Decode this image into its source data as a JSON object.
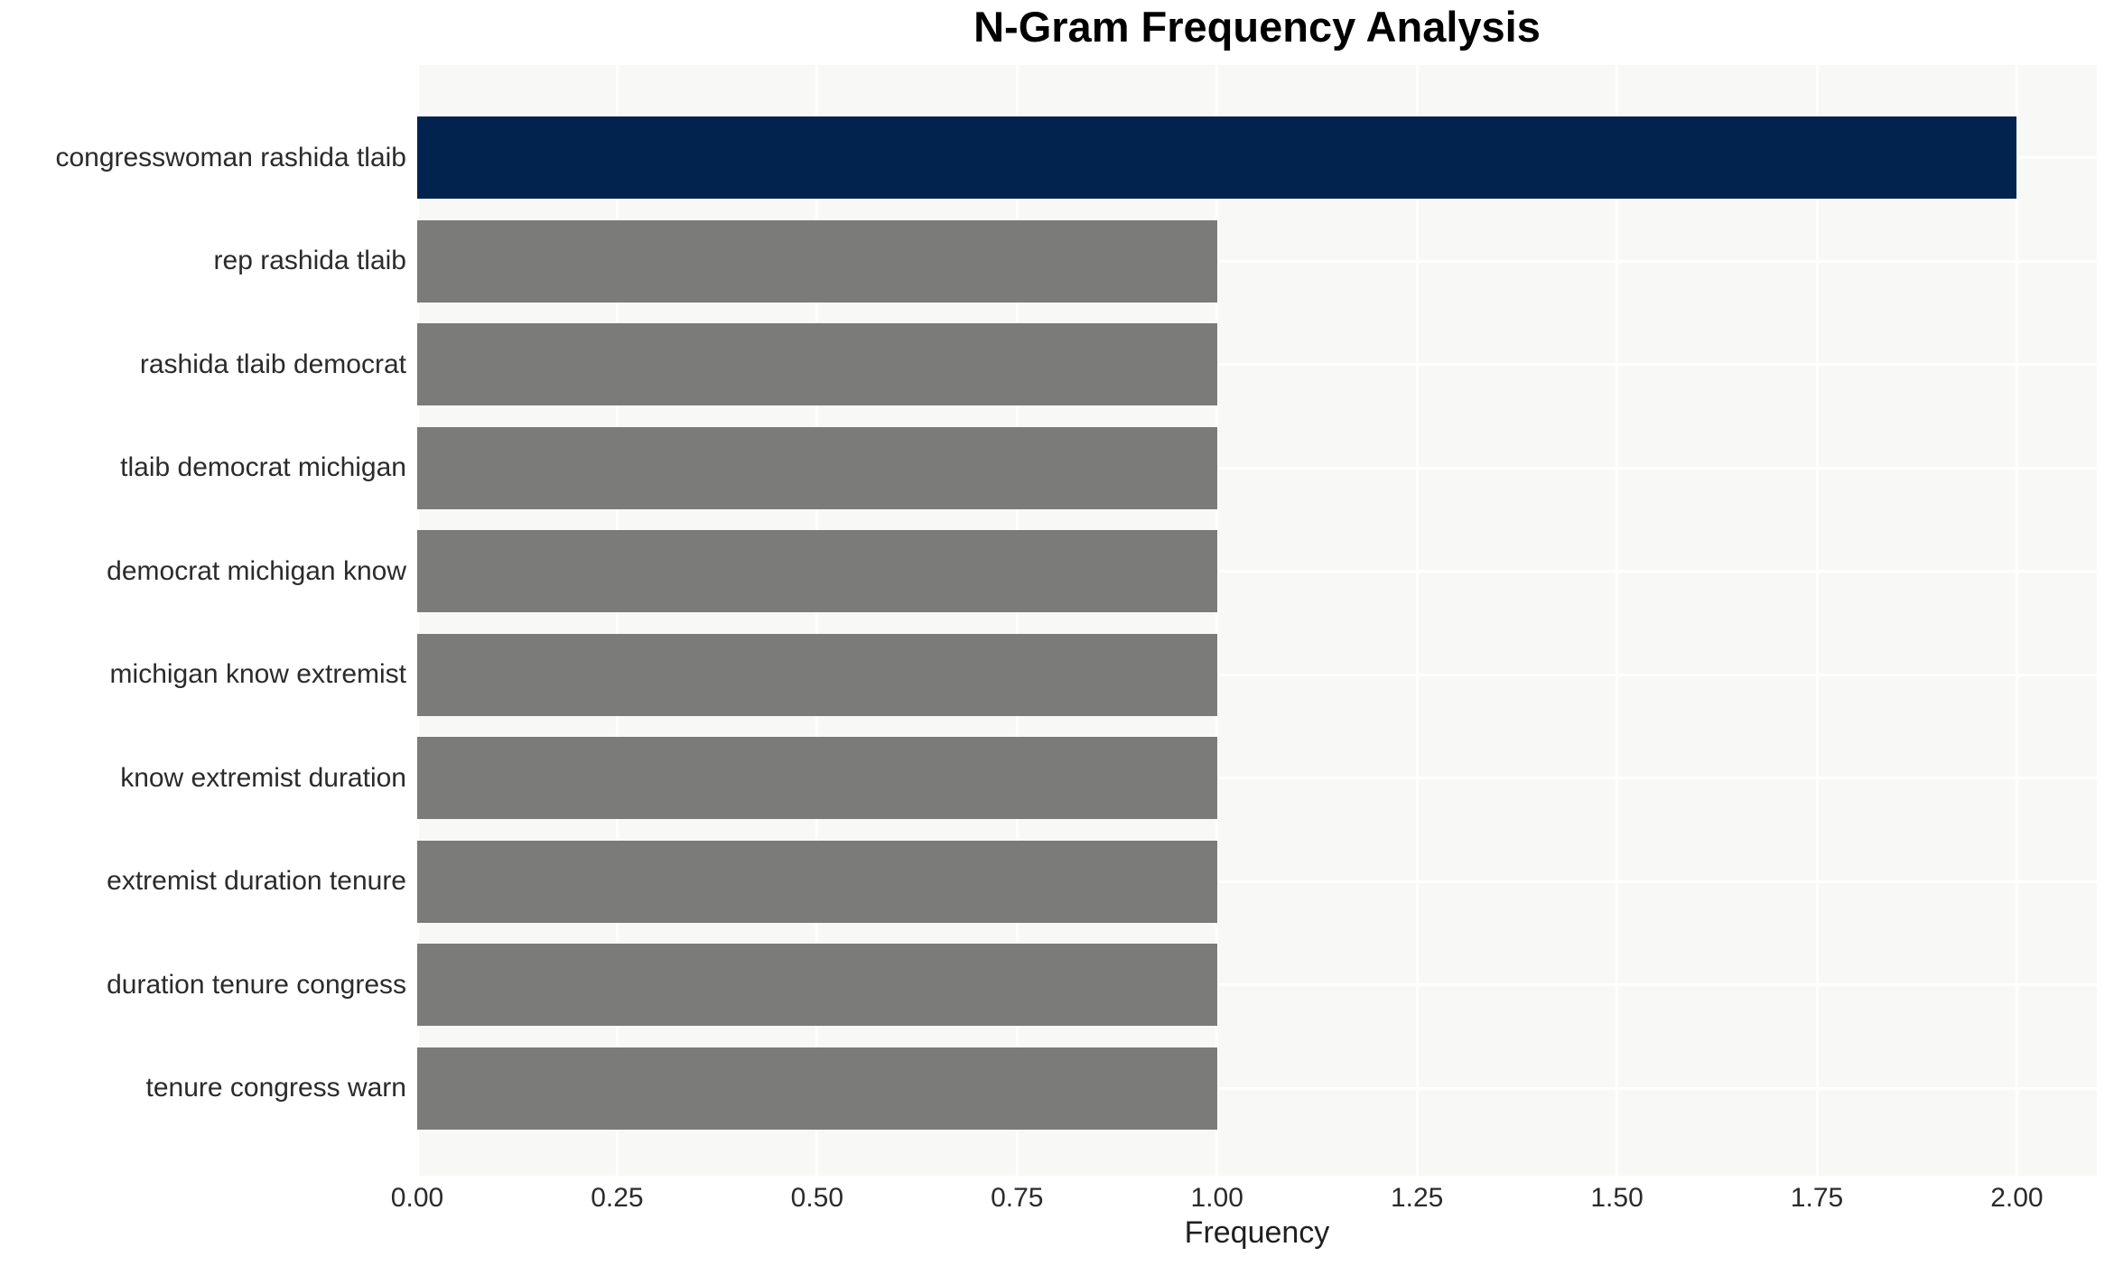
{
  "chart_data": {
    "type": "bar",
    "orientation": "horizontal",
    "title": "N-Gram Frequency Analysis",
    "xlabel": "Frequency",
    "ylabel": "",
    "categories": [
      "congresswoman rashida tlaib",
      "rep rashida tlaib",
      "rashida tlaib democrat",
      "tlaib democrat michigan",
      "democrat michigan know",
      "michigan know extremist",
      "know extremist duration",
      "extremist duration tenure",
      "duration tenure congress",
      "tenure congress warn"
    ],
    "values": [
      2,
      1,
      1,
      1,
      1,
      1,
      1,
      1,
      1,
      1
    ],
    "bar_colors": [
      "#02234E",
      "#7B7B79",
      "#7B7B79",
      "#7B7B79",
      "#7B7B79",
      "#7B7B79",
      "#7B7B79",
      "#7B7B79",
      "#7B7B79",
      "#7B7B79"
    ],
    "highlight_color": "#02234E",
    "default_bar_color": "#7B7B79",
    "xlim": [
      0,
      2.1
    ],
    "xticks": [
      0,
      0.25,
      0.5,
      0.75,
      1.0,
      1.25,
      1.5,
      1.75,
      2.0
    ],
    "xtick_labels": [
      "0.00",
      "0.25",
      "0.50",
      "0.75",
      "1.00",
      "1.25",
      "1.50",
      "1.75",
      "2.00"
    ],
    "grid": true,
    "legend": false,
    "panel_background": "#F8F8F7",
    "gridline_color": "#FFFFFF",
    "text_color": "#2B2B2B"
  }
}
